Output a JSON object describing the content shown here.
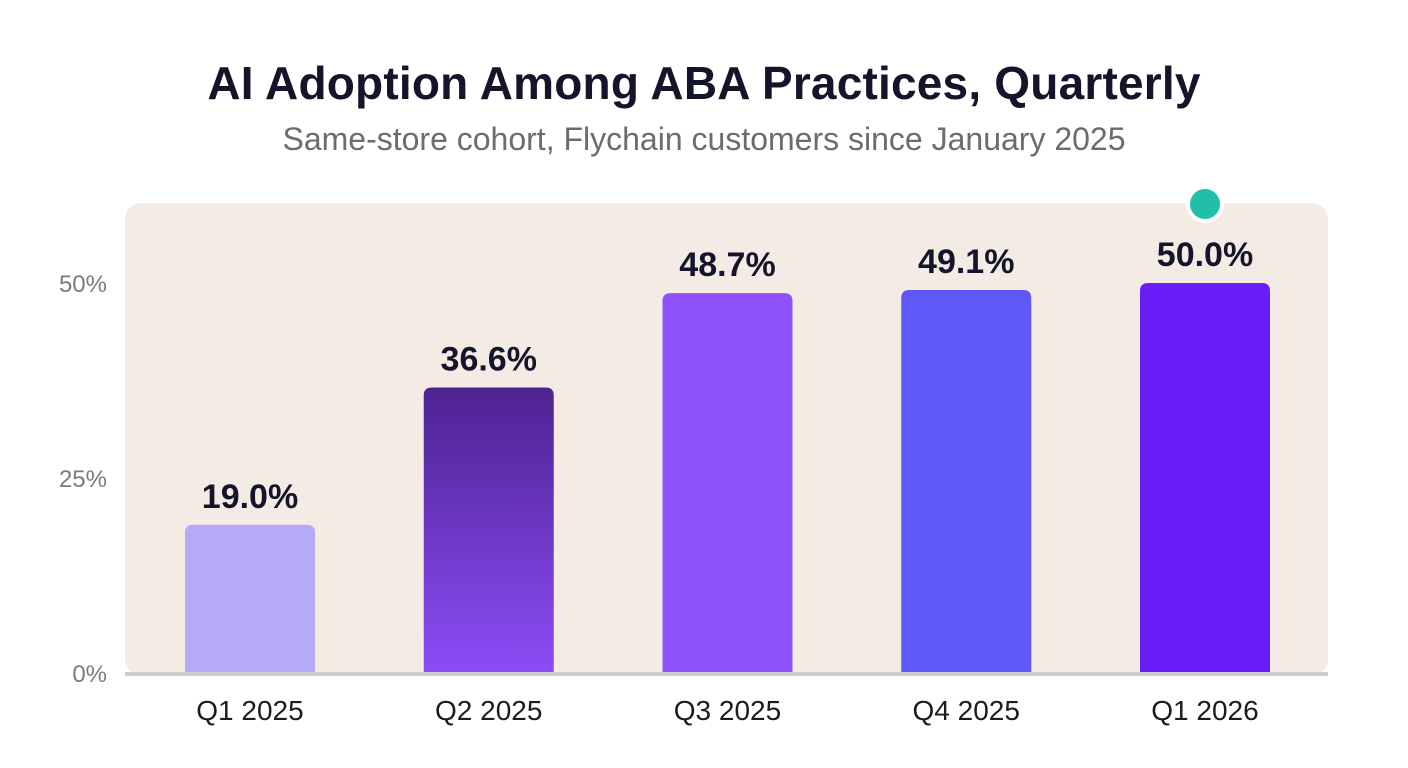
{
  "chart_data": {
    "type": "bar",
    "title": "AI Adoption Among ABA Practices, Quarterly",
    "subtitle": "Same-store cohort, Flychain customers since January 2025",
    "categories": [
      "Q1 2025",
      "Q2 2025",
      "Q3 2025",
      "Q4 2025",
      "Q1 2026"
    ],
    "values": [
      19.0,
      36.6,
      48.7,
      49.1,
      50.0
    ],
    "value_labels": [
      "19.0%",
      "36.6%",
      "48.7%",
      "49.1%",
      "50.0%"
    ],
    "y_ticks": [
      0,
      25,
      50
    ],
    "y_tick_labels": [
      "0%",
      "25%",
      "50%"
    ],
    "ylim": [
      0,
      60
    ],
    "grid": false,
    "legend": "none",
    "colors": {
      "plot_background": "#f3ebe4",
      "axis": "#c9ccd3",
      "marker": "#1fbfa8",
      "bars": [
        {
          "top": "#b4aaf9",
          "bottom": "#b4aaf9"
        },
        {
          "top": "#4c2391",
          "bottom": "#8d4cf7"
        },
        {
          "top": "#8f52fa",
          "bottom": "#8f52fa"
        },
        {
          "top": "#5e58fb",
          "bottom": "#5e58fb"
        },
        {
          "top": "#6a1cf7",
          "bottom": "#6a1cf7"
        }
      ]
    },
    "highlight_marker_index": 4
  }
}
